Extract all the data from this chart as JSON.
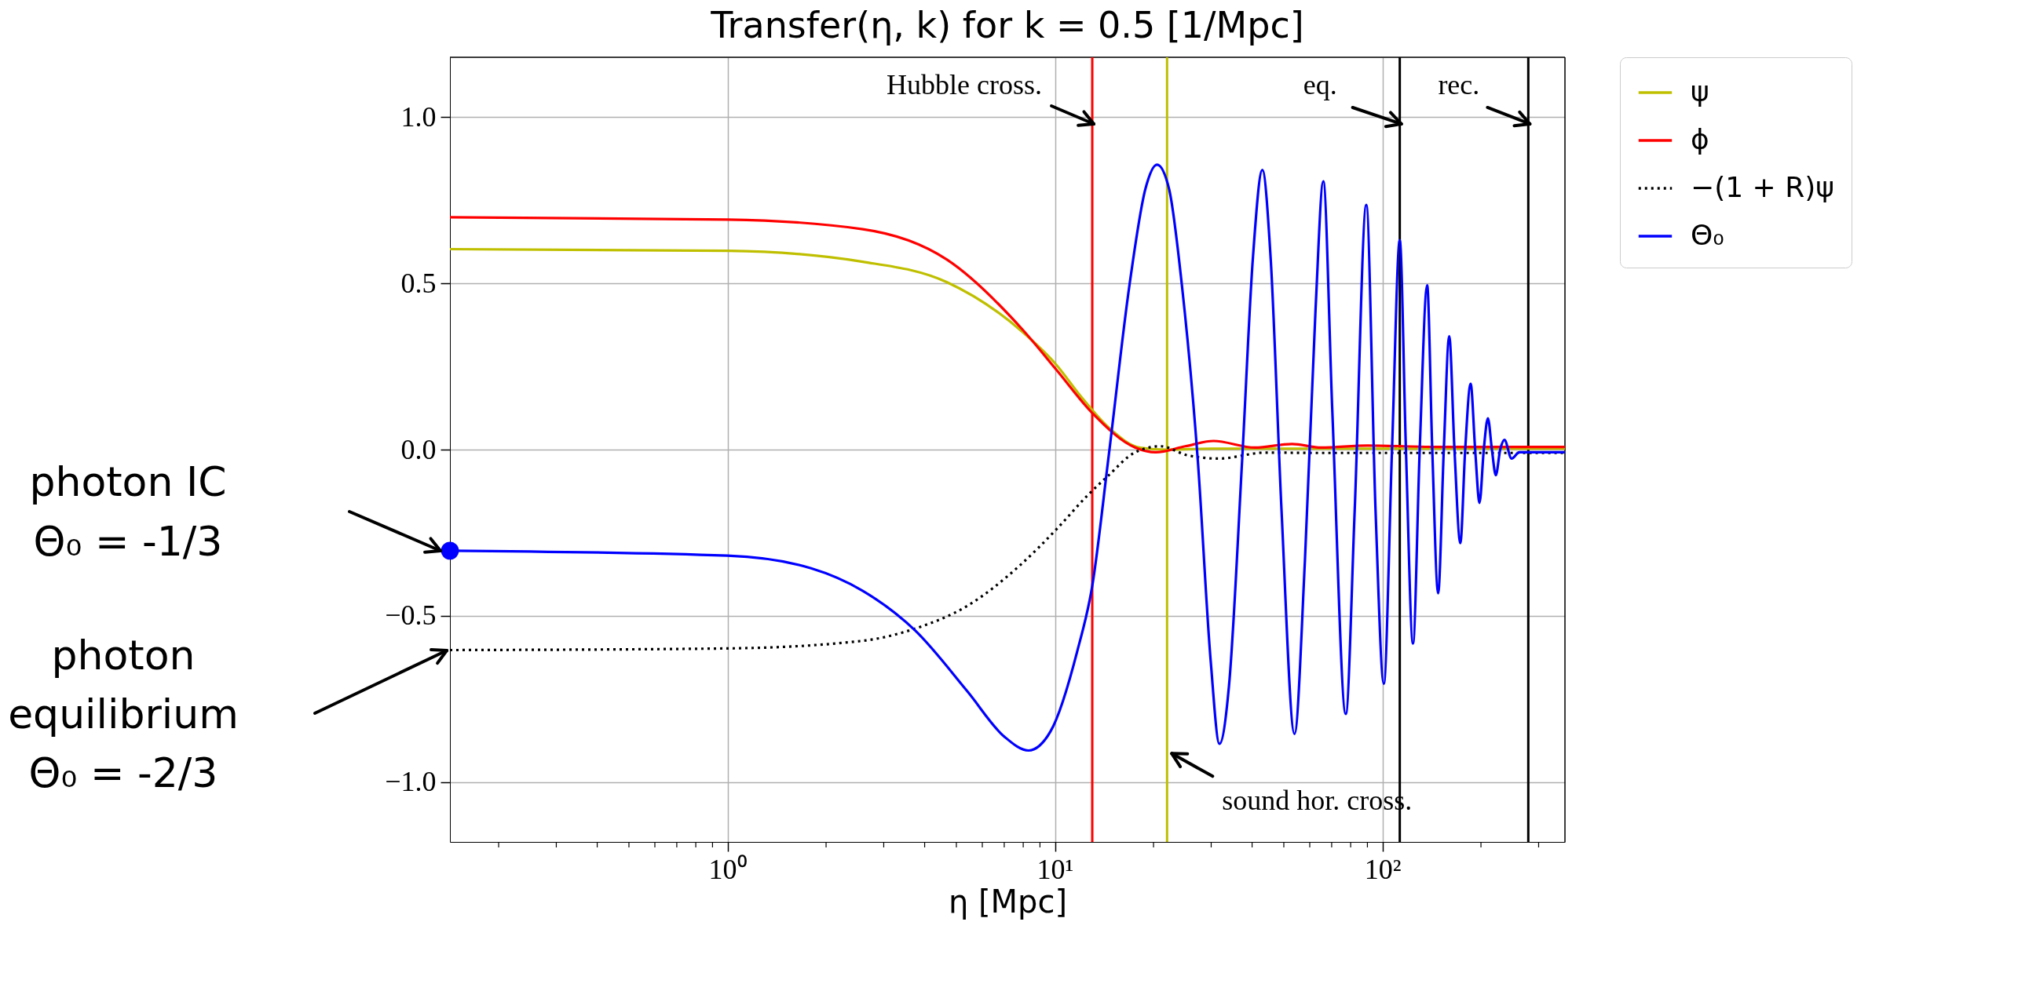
{
  "chart_data": {
    "type": "line",
    "title": "Transfer(η, k)  for  k = 0.5  [1/Mpc]",
    "xlabel": "η [Mpc]",
    "log": "x",
    "grid": true,
    "legend": "right",
    "xlim": [
      0.142,
      361
    ],
    "ylim": [
      -1.18,
      1.18
    ],
    "xticks": [
      {
        "value": 0.2,
        "label": null
      },
      {
        "value": 0.3,
        "label": null
      },
      {
        "value": 0.4,
        "label": null
      },
      {
        "value": 0.5,
        "label": null
      },
      {
        "value": 0.6,
        "label": null
      },
      {
        "value": 0.7,
        "label": null
      },
      {
        "value": 0.8,
        "label": null
      },
      {
        "value": 0.9,
        "label": null
      },
      {
        "value": 1,
        "label": "10⁰"
      },
      {
        "value": 2,
        "label": null
      },
      {
        "value": 3,
        "label": null
      },
      {
        "value": 4,
        "label": null
      },
      {
        "value": 5,
        "label": null
      },
      {
        "value": 6,
        "label": null
      },
      {
        "value": 7,
        "label": null
      },
      {
        "value": 8,
        "label": null
      },
      {
        "value": 9,
        "label": null
      },
      {
        "value": 10,
        "label": "10¹"
      },
      {
        "value": 20,
        "label": null
      },
      {
        "value": 30,
        "label": null
      },
      {
        "value": 40,
        "label": null
      },
      {
        "value": 50,
        "label": null
      },
      {
        "value": 60,
        "label": null
      },
      {
        "value": 70,
        "label": null
      },
      {
        "value": 80,
        "label": null
      },
      {
        "value": 90,
        "label": null
      },
      {
        "value": 100,
        "label": "10²"
      },
      {
        "value": 200,
        "label": null
      },
      {
        "value": 300,
        "label": null
      }
    ],
    "yticks": [
      {
        "value": -1,
        "label": "−1.0"
      },
      {
        "value": -0.5,
        "label": "−0.5"
      },
      {
        "value": 0,
        "label": "0.0"
      },
      {
        "value": 0.5,
        "label": "0.5"
      },
      {
        "value": 1,
        "label": "1.0"
      }
    ],
    "series": [
      {
        "name": "ψ",
        "color": "#bfbf00",
        "x": [
          0.142,
          1,
          2.59,
          4.67,
          7.96,
          10.1,
          12,
          14.6,
          18.2,
          22,
          30,
          361
        ],
        "values": [
          0.603,
          0.598,
          0.565,
          0.504,
          0.354,
          0.255,
          0.16,
          0.066,
          0.006,
          0.0,
          0.003,
          0.003
        ]
      },
      {
        "name": "ϕ",
        "color": "#ff0000",
        "x": [
          0.142,
          1,
          2.59,
          4.67,
          7.96,
          10.1,
          13,
          17.6,
          20.3,
          25,
          30.5,
          40.8,
          53,
          65,
          90,
          150,
          361
        ],
        "values": [
          0.699,
          0.692,
          0.663,
          0.572,
          0.361,
          0.24,
          0.11,
          0.006,
          -0.008,
          0.01,
          0.026,
          0.006,
          0.017,
          0.006,
          0.012,
          0.008,
          0.008
        ]
      },
      {
        "name": "−(1 + R)ψ",
        "color": "#000000",
        "line_style": "dotted",
        "x": [
          0.142,
          1,
          2.59,
          3.75,
          5.4,
          7.8,
          10.1,
          12.6,
          14.6,
          17.5,
          21,
          25.4,
          31.6,
          44,
          63,
          361
        ],
        "values": [
          -0.603,
          -0.598,
          -0.575,
          -0.538,
          -0.47,
          -0.349,
          -0.24,
          -0.137,
          -0.077,
          -0.009,
          0.01,
          -0.017,
          -0.027,
          -0.009,
          -0.01,
          -0.01
        ]
      },
      {
        "name": "Θ₀",
        "color": "#0000ff",
        "x": [
          0.142,
          1,
          1.8,
          2.59,
          3.75,
          5.4,
          7,
          8.3,
          9.7,
          11.7,
          13,
          14.6,
          16.9,
          18.9,
          20.5,
          22.3,
          24.4,
          27.3,
          29.9,
          31.8,
          34,
          37.3,
          40.2,
          43,
          45.6,
          49.2,
          53.9,
          58,
          62.5,
          66,
          70.3,
          77.3,
          82.3,
          89.3,
          95.3,
          101,
          107,
          113,
          118,
          124,
          130,
          137,
          142,
          148,
          154,
          160,
          166,
          173,
          179,
          186,
          192,
          198,
          204,
          210,
          216,
          222,
          229,
          236,
          248,
          262,
          361
        ],
        "values": [
          -0.304,
          -0.319,
          -0.357,
          -0.425,
          -0.545,
          -0.727,
          -0.863,
          -0.905,
          -0.847,
          -0.606,
          -0.41,
          -0.017,
          0.497,
          0.785,
          0.857,
          0.785,
          0.497,
          -0.031,
          -0.636,
          -0.885,
          -0.711,
          -0.031,
          0.572,
          0.841,
          0.572,
          -0.183,
          -0.855,
          -0.334,
          0.422,
          0.807,
          0.119,
          -0.795,
          -0.183,
          0.736,
          -0.183,
          -0.704,
          0.0,
          0.63,
          0.0,
          -0.583,
          0.0,
          0.494,
          0.0,
          -0.432,
          0.0,
          0.341,
          0.0,
          -0.281,
          0.0,
          0.198,
          0.0,
          -0.16,
          0.0,
          0.094,
          0.0,
          -0.077,
          0.0,
          0.029,
          -0.027,
          -0.008,
          -0.008
        ]
      },
      {
        "type": "scatter",
        "color": "#0000ff",
        "marker": "circle",
        "x": [
          0.142
        ],
        "values": [
          -0.304
        ]
      }
    ],
    "ref_lines": [
      {
        "axis": "x",
        "value": 13,
        "color": "#ff0000"
      },
      {
        "axis": "x",
        "value": 22,
        "color": "#bfbf00"
      },
      {
        "axis": "x",
        "value": 113,
        "color": "#000000"
      },
      {
        "axis": "x",
        "value": 279,
        "color": "#000000"
      }
    ],
    "annotations": [
      {
        "text": "Hubble cross.",
        "x": 13,
        "y": 0.97
      },
      {
        "text": "eq.",
        "x": 113,
        "y": 0.97
      },
      {
        "text": "rec.",
        "x": 279,
        "y": 0.97
      },
      {
        "text": "sound hor. cross.",
        "x": 22,
        "y": -0.9
      },
      "photon IC\nΘ₀ = -1/3",
      "photon\nequilibrium\nΘ₀ = -2/3"
    ]
  }
}
